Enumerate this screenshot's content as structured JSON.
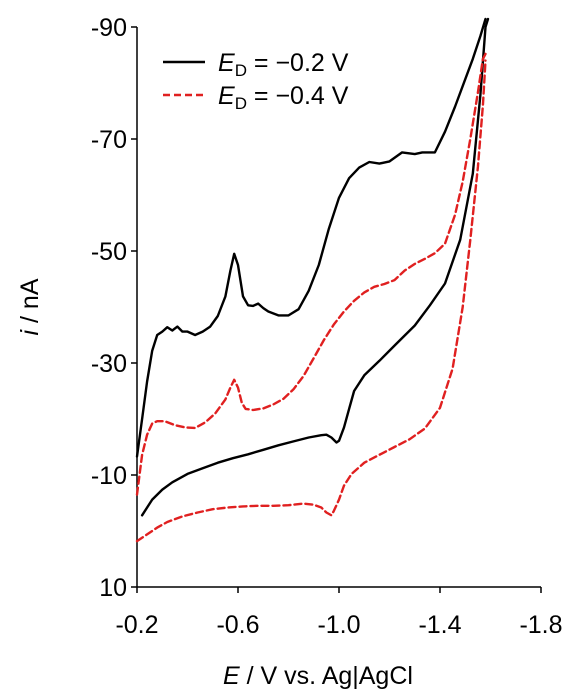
{
  "chart_data": {
    "type": "line",
    "xlabel": {
      "symbol": "E",
      "rest": " / V vs. Ag|AgCl"
    },
    "ylabel": {
      "symbol": "i",
      "rest": " / nA"
    },
    "xlim": [
      -0.2,
      -1.8
    ],
    "ylim": [
      10,
      -90
    ],
    "x_ticks": [
      -0.2,
      -0.6,
      -1.0,
      -1.4,
      -1.8
    ],
    "x_tick_labels": [
      "-0.2",
      "-0.6",
      "-1.0",
      "-1.4",
      "-1.8"
    ],
    "y_ticks": [
      -90,
      -70,
      -50,
      -30,
      -10,
      10
    ],
    "y_tick_labels": [
      "-90",
      "-70",
      "-50",
      "-30",
      "-10",
      "10"
    ],
    "grid": false,
    "legend_position": "top-left",
    "series": [
      {
        "name": "E_D = -0.2 V",
        "legend": {
          "symbol": "E",
          "subscript": "D",
          "rest": " = −0.2 V"
        },
        "color": "#000000",
        "dash": "solid",
        "segments": [
          [
            [
              -0.2,
              -13.3
            ],
            [
              -0.22,
              -20.0
            ],
            [
              -0.24,
              -26.7
            ],
            [
              -0.26,
              -32.2
            ],
            [
              -0.28,
              -35.0
            ],
            [
              -0.3,
              -35.6
            ],
            [
              -0.32,
              -36.4
            ],
            [
              -0.34,
              -35.8
            ],
            [
              -0.36,
              -36.5
            ],
            [
              -0.38,
              -35.6
            ],
            [
              -0.4,
              -35.6
            ],
            [
              -0.43,
              -35.0
            ],
            [
              -0.46,
              -35.6
            ],
            [
              -0.49,
              -36.5
            ],
            [
              -0.52,
              -38.4
            ],
            [
              -0.55,
              -41.9
            ],
            [
              -0.57,
              -46.5
            ],
            [
              -0.585,
              -49.5
            ],
            [
              -0.6,
              -47.5
            ],
            [
              -0.62,
              -41.9
            ],
            [
              -0.64,
              -40.3
            ],
            [
              -0.66,
              -40.2
            ],
            [
              -0.68,
              -40.6
            ],
            [
              -0.7,
              -39.8
            ],
            [
              -0.72,
              -39.2
            ],
            [
              -0.76,
              -38.5
            ],
            [
              -0.8,
              -38.5
            ],
            [
              -0.84,
              -39.6
            ],
            [
              -0.88,
              -42.9
            ],
            [
              -0.92,
              -47.5
            ],
            [
              -0.96,
              -54.0
            ],
            [
              -1.0,
              -59.5
            ],
            [
              -1.04,
              -63.0
            ],
            [
              -1.08,
              -64.9
            ],
            [
              -1.12,
              -65.9
            ],
            [
              -1.16,
              -65.6
            ],
            [
              -1.2,
              -66.0
            ],
            [
              -1.25,
              -67.6
            ],
            [
              -1.3,
              -67.3
            ],
            [
              -1.33,
              -67.6
            ],
            [
              -1.38,
              -67.6
            ],
            [
              -1.42,
              -71.3
            ],
            [
              -1.46,
              -75.8
            ],
            [
              -1.5,
              -80.7
            ],
            [
              -1.53,
              -84.3
            ],
            [
              -1.56,
              -88.4
            ],
            [
              -1.58,
              -91.5
            ]
          ],
          [
            [
              -0.22,
              -2.8
            ],
            [
              -0.26,
              -5.6
            ],
            [
              -0.3,
              -7.4
            ],
            [
              -0.34,
              -8.7
            ],
            [
              -0.4,
              -10.2
            ],
            [
              -0.46,
              -11.2
            ],
            [
              -0.52,
              -12.2
            ],
            [
              -0.58,
              -13.0
            ],
            [
              -0.64,
              -13.7
            ],
            [
              -0.7,
              -14.5
            ],
            [
              -0.76,
              -15.3
            ],
            [
              -0.82,
              -16.0
            ],
            [
              -0.88,
              -16.7
            ],
            [
              -0.93,
              -17.1
            ],
            [
              -0.95,
              -17.2
            ],
            [
              -0.97,
              -16.7
            ],
            [
              -0.99,
              -15.8
            ],
            [
              -1.0,
              -16.1
            ],
            [
              -1.02,
              -18.5
            ],
            [
              -1.04,
              -21.8
            ],
            [
              -1.06,
              -25.0
            ],
            [
              -1.1,
              -27.8
            ],
            [
              -1.16,
              -30.4
            ],
            [
              -1.22,
              -33.1
            ],
            [
              -1.3,
              -36.7
            ],
            [
              -1.36,
              -40.3
            ],
            [
              -1.42,
              -44.2
            ],
            [
              -1.48,
              -52.0
            ],
            [
              -1.53,
              -63.8
            ],
            [
              -1.56,
              -77.9
            ],
            [
              -1.58,
              -90.0
            ],
            [
              -1.59,
              -94.5
            ]
          ]
        ]
      },
      {
        "name": "E_D = -0.4 V",
        "legend": {
          "symbol": "E",
          "subscript": "D",
          "rest": " = −0.4 V"
        },
        "color": "#e02020",
        "dash": "dashed",
        "segments": [
          [
            [
              -0.2,
              -6.5
            ],
            [
              -0.22,
              -13.6
            ],
            [
              -0.24,
              -17.2
            ],
            [
              -0.26,
              -19.2
            ],
            [
              -0.28,
              -19.6
            ],
            [
              -0.31,
              -19.6
            ],
            [
              -0.35,
              -18.9
            ],
            [
              -0.39,
              -18.5
            ],
            [
              -0.43,
              -18.4
            ],
            [
              -0.47,
              -19.4
            ],
            [
              -0.51,
              -21.0
            ],
            [
              -0.55,
              -23.5
            ],
            [
              -0.57,
              -25.6
            ],
            [
              -0.585,
              -27.0
            ],
            [
              -0.6,
              -25.6
            ],
            [
              -0.615,
              -22.9
            ],
            [
              -0.63,
              -21.8
            ],
            [
              -0.66,
              -21.6
            ],
            [
              -0.7,
              -21.9
            ],
            [
              -0.74,
              -22.6
            ],
            [
              -0.78,
              -23.6
            ],
            [
              -0.82,
              -25.3
            ],
            [
              -0.86,
              -27.7
            ],
            [
              -0.9,
              -30.9
            ],
            [
              -0.94,
              -34.1
            ],
            [
              -0.98,
              -36.9
            ],
            [
              -1.02,
              -39.2
            ],
            [
              -1.06,
              -41.1
            ],
            [
              -1.1,
              -42.6
            ],
            [
              -1.14,
              -43.6
            ],
            [
              -1.18,
              -44.1
            ],
            [
              -1.22,
              -44.8
            ],
            [
              -1.26,
              -46.5
            ],
            [
              -1.3,
              -47.7
            ],
            [
              -1.34,
              -48.6
            ],
            [
              -1.38,
              -49.6
            ],
            [
              -1.42,
              -51.3
            ],
            [
              -1.46,
              -56.5
            ],
            [
              -1.49,
              -62.4
            ],
            [
              -1.52,
              -70.0
            ],
            [
              -1.55,
              -78.3
            ],
            [
              -1.57,
              -84.3
            ],
            [
              -1.58,
              -85.2
            ]
          ],
          [
            [
              -0.2,
              1.8
            ],
            [
              -0.24,
              0.6
            ],
            [
              -0.28,
              -0.6
            ],
            [
              -0.32,
              -1.6
            ],
            [
              -0.38,
              -2.6
            ],
            [
              -0.44,
              -3.3
            ],
            [
              -0.5,
              -3.9
            ],
            [
              -0.56,
              -4.2
            ],
            [
              -0.62,
              -4.4
            ],
            [
              -0.68,
              -4.5
            ],
            [
              -0.74,
              -4.5
            ],
            [
              -0.8,
              -4.6
            ],
            [
              -0.86,
              -4.9
            ],
            [
              -0.9,
              -4.7
            ],
            [
              -0.93,
              -4.2
            ],
            [
              -0.95,
              -3.3
            ],
            [
              -0.97,
              -2.8
            ],
            [
              -0.98,
              -3.6
            ],
            [
              -1.0,
              -5.6
            ],
            [
              -1.02,
              -8.1
            ],
            [
              -1.05,
              -10.2
            ],
            [
              -1.1,
              -12.2
            ],
            [
              -1.16,
              -13.6
            ],
            [
              -1.22,
              -15.0
            ],
            [
              -1.28,
              -16.4
            ],
            [
              -1.34,
              -18.3
            ],
            [
              -1.4,
              -22.0
            ],
            [
              -1.45,
              -29.0
            ],
            [
              -1.49,
              -40.0
            ],
            [
              -1.52,
              -52.0
            ],
            [
              -1.55,
              -65.0
            ],
            [
              -1.57,
              -76.0
            ],
            [
              -1.58,
              -84.0
            ]
          ]
        ]
      }
    ]
  }
}
